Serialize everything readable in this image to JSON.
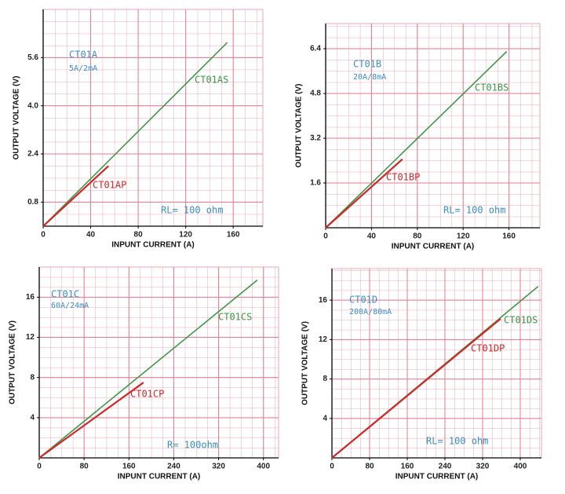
{
  "chart_data": [
    {
      "type": "line",
      "xlabel": "INPUNT CURRENT (A)",
      "ylabel": "OUTPUT VOLTAGE (V)",
      "xlim": [
        0,
        185
      ],
      "ylim": [
        0,
        7.2
      ],
      "xticks": [
        0,
        40,
        80,
        120,
        160
      ],
      "yticks": [
        0.8,
        2.4,
        {
          "value": 4,
          "label": "4.0"
        },
        5.6
      ],
      "grid": true,
      "series": [
        {
          "name": "CT01AS",
          "color": "#3a9a4a",
          "x": [
            0,
            155
          ],
          "values": [
            0,
            6.1
          ]
        },
        {
          "name": "CT01AP",
          "color": "#d02828",
          "x": [
            0,
            55
          ],
          "values": [
            0,
            2.0
          ]
        }
      ],
      "annotations": [
        "CT01A",
        "5A/2mA",
        "RL= 100 ohm"
      ]
    },
    {
      "type": "line",
      "xlabel": "INPUNT CURRENT (A)",
      "ylabel": "OUTPUT VOLTAGE (V)",
      "xlim": [
        0,
        187
      ],
      "ylim": [
        0,
        7.3
      ],
      "xticks": [
        0,
        40,
        80,
        120,
        160
      ],
      "yticks": [
        1.6,
        3.2,
        4.8,
        6.4
      ],
      "grid": true,
      "series": [
        {
          "name": "CT01BS",
          "color": "#3a9a4a",
          "x": [
            0,
            158
          ],
          "values": [
            0,
            6.3
          ]
        },
        {
          "name": "CT01BP",
          "color": "#d02828",
          "x": [
            0,
            67
          ],
          "values": [
            0,
            2.45
          ]
        }
      ],
      "annotations": [
        "CT01B",
        "20A/8mA",
        "RL= 100 ohm"
      ]
    },
    {
      "type": "line",
      "xlabel": "INPUNT CURRENT (A)",
      "ylabel": "OUTPUT VOLTAGE (V)",
      "xlim": [
        0,
        427
      ],
      "ylim": [
        0,
        19
      ],
      "xticks": [
        0,
        80,
        160,
        240,
        320,
        400
      ],
      "yticks": [
        4,
        8,
        12,
        16
      ],
      "grid": true,
      "series": [
        {
          "name": "CT01CS",
          "color": "#3a9a4a",
          "x": [
            0,
            389
          ],
          "values": [
            0,
            17.7
          ]
        },
        {
          "name": "CT01CP",
          "color": "#d02828",
          "x": [
            0,
            186
          ],
          "values": [
            0,
            7.5
          ]
        }
      ],
      "annotations": [
        "CT01C",
        "60A/24mA",
        "R= 100ohm"
      ]
    },
    {
      "type": "line",
      "xlabel": "INPUNT CURRENT (A)",
      "ylabel": "OUTPUT VOLTAGE (V)",
      "xlim": [
        0,
        445
      ],
      "ylim": [
        0,
        19.2
      ],
      "xticks": [
        0,
        80,
        160,
        240,
        320,
        400
      ],
      "yticks": [
        4,
        8,
        12,
        16
      ],
      "grid": true,
      "series": [
        {
          "name": "CT01DS",
          "color": "#3a9a4a",
          "x": [
            0,
            438
          ],
          "values": [
            0,
            17.4
          ]
        },
        {
          "name": "CT01DP",
          "color": "#d02828",
          "x": [
            0,
            358
          ],
          "values": [
            0,
            14.1
          ]
        }
      ],
      "annotations": [
        "CT01D",
        "200A/80mA",
        "RL= 100 ohm"
      ]
    }
  ]
}
